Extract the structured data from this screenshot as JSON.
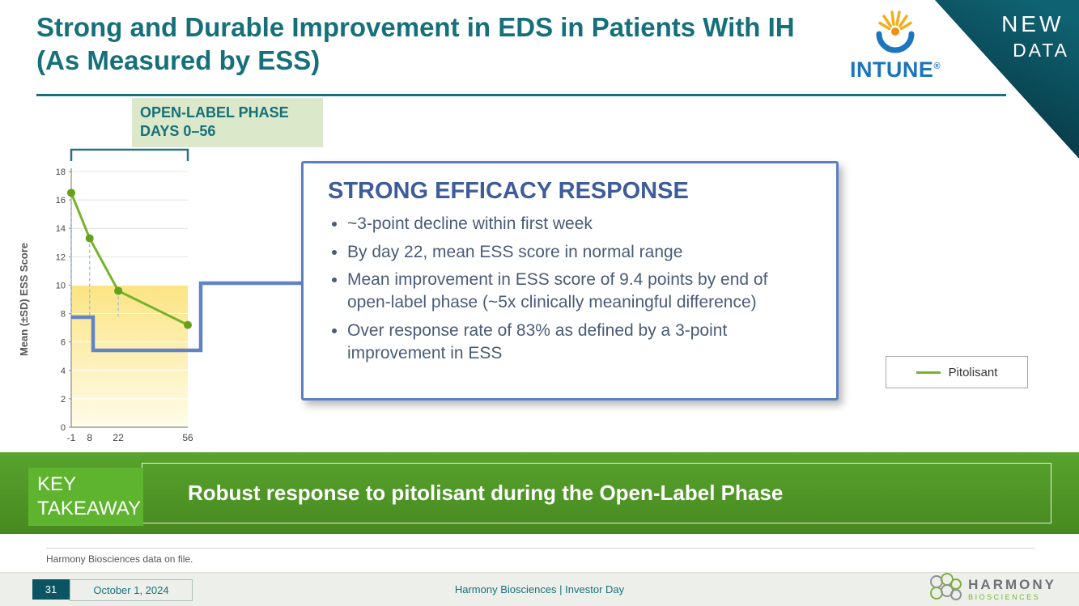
{
  "slide": {
    "title": "Strong and Durable Improvement in EDS in Patients With IH (As Measured by ESS)",
    "badge": {
      "line1": "NEW",
      "line2": "DATA"
    },
    "logo_text": "INTUNE",
    "logo_reg": "®"
  },
  "open_label_label": {
    "line1": "OPEN-LABEL PHASE",
    "line2": "DAYS 0–56"
  },
  "chart_data": {
    "type": "line",
    "title": "",
    "ylabel": "Mean (±SD) ESS Score",
    "x": [
      -1,
      8,
      22,
      56
    ],
    "x_tick_labels": [
      "-1",
      "8",
      "22",
      "56"
    ],
    "yticks": [
      0,
      2,
      4,
      6,
      8,
      10,
      12,
      14,
      16,
      18
    ],
    "ylim": [
      0,
      18
    ],
    "series": [
      {
        "name": "Pitolisant",
        "color": "#76b32a",
        "values": [
          16.5,
          13.3,
          9.6,
          7.2
        ]
      }
    ],
    "normal_range_band": {
      "from": 0,
      "to": 10
    },
    "legend_position": "right",
    "grid": true
  },
  "callout": {
    "title": "STRONG EFFICACY RESPONSE",
    "bullets": [
      "~3-point decline within first week",
      "By day 22, mean ESS score in normal range",
      "Mean improvement in ESS score of 9.4 points by end of open-label phase (~5x clinically meaningful difference)",
      "Over response rate of 83% as defined by a 3-point improvement in ESS"
    ]
  },
  "takeaway": {
    "label": "KEY TAKEAWAY",
    "text": "Robust response to pitolisant during the Open-Label Phase"
  },
  "footnote": "Harmony Biosciences data on file.",
  "footer": {
    "page_number": "31",
    "date": "October 1, 2024",
    "center_text": "Harmony Biosciences  |  Investor Day",
    "brand_name": "HARMONY",
    "brand_sub": "BIOSCIENCES"
  },
  "colors": {
    "accent_teal": "#15707a",
    "line_green": "#76b32a",
    "callout_blue": "#5b7fc0",
    "banner_green": "#4f9627"
  }
}
